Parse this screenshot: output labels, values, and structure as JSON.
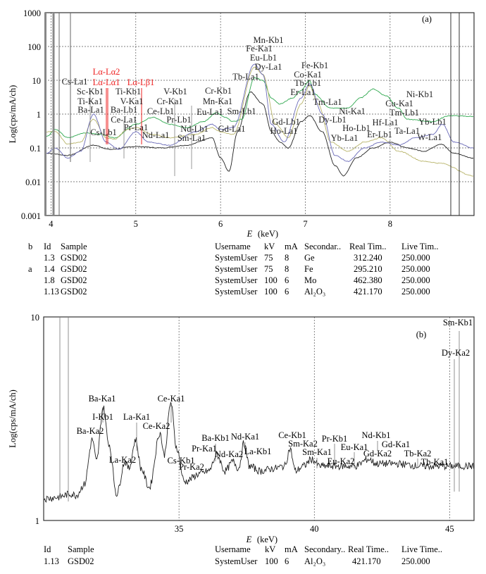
{
  "chart_data": [
    {
      "type": "line",
      "panel_label": "(a)",
      "xlabel_italic": "E",
      "xlabel_rest": "(keV)",
      "ylabel": "Log(cps/mA/ch)",
      "yscale": "log",
      "xlim": [
        3.93,
        8.99
      ],
      "ylim": [
        0.001,
        1000
      ],
      "grid": true,
      "xticks": [
        "4",
        "5",
        "6",
        "7",
        "8"
      ],
      "yticks": [
        "1000",
        "100",
        "10",
        "1",
        "0.1",
        "0.01",
        "0.001"
      ],
      "colors": {
        "black": "#222222",
        "green": "#2fa84f",
        "yellow": "#b8b46a",
        "blue": "#6a6ab8",
        "red": "#ee2222"
      },
      "series": [
        {
          "name": "1.13",
          "color": "black",
          "points": [
            [
              3.95,
              0.07
            ],
            [
              4.2,
              0.06
            ],
            [
              4.5,
              0.12
            ],
            [
              4.7,
              0.09
            ],
            [
              5.0,
              0.11
            ],
            [
              5.3,
              0.1
            ],
            [
              5.6,
              0.12
            ],
            [
              5.9,
              0.2
            ],
            [
              6.0,
              0.05
            ],
            [
              6.1,
              0.02
            ],
            [
              6.2,
              0.3
            ],
            [
              6.35,
              4.5
            ],
            [
              6.5,
              2
            ],
            [
              6.6,
              0.3
            ],
            [
              6.7,
              0.15
            ],
            [
              6.8,
              0.1
            ],
            [
              6.95,
              0.6
            ],
            [
              7.05,
              0.9
            ],
            [
              7.2,
              0.3
            ],
            [
              7.35,
              0.03
            ],
            [
              7.45,
              0.015
            ],
            [
              7.6,
              0.05
            ],
            [
              7.8,
              0.1
            ],
            [
              8.0,
              0.15
            ],
            [
              8.2,
              0.1
            ],
            [
              8.4,
              0.08
            ],
            [
              8.6,
              0.13
            ],
            [
              8.75,
              0.07
            ],
            [
              8.98,
              0.05
            ]
          ]
        },
        {
          "name": "1.8",
          "color": "green",
          "points": [
            [
              3.95,
              0.22
            ],
            [
              4.05,
              0.35
            ],
            [
              4.2,
              0.2
            ],
            [
              4.4,
              0.28
            ],
            [
              4.6,
              0.25
            ],
            [
              4.75,
              0.2
            ],
            [
              5.0,
              0.5
            ],
            [
              5.2,
              0.8
            ],
            [
              5.4,
              0.5
            ],
            [
              5.6,
              0.4
            ],
            [
              5.8,
              0.6
            ],
            [
              5.95,
              1.1
            ],
            [
              6.05,
              0.8
            ],
            [
              6.15,
              0.6
            ],
            [
              6.25,
              0.7
            ],
            [
              6.4,
              12
            ],
            [
              6.5,
              10
            ],
            [
              6.6,
              3
            ],
            [
              6.7,
              2
            ],
            [
              6.85,
              3
            ],
            [
              6.95,
              5
            ],
            [
              7.05,
              10
            ],
            [
              7.1,
              4
            ],
            [
              7.3,
              1.5
            ],
            [
              7.5,
              1.5
            ],
            [
              7.65,
              3
            ],
            [
              7.8,
              5.5
            ],
            [
              7.95,
              3.5
            ],
            [
              8.1,
              1.5
            ],
            [
              8.2,
              0.7
            ],
            [
              8.5,
              0.6
            ],
            [
              8.7,
              0.9
            ],
            [
              8.98,
              0.85
            ]
          ]
        },
        {
          "name": "1.4",
          "color": "yellow",
          "points": [
            [
              3.95,
              0.3
            ],
            [
              4.05,
              0.3
            ],
            [
              4.2,
              0.13
            ],
            [
              4.35,
              0.15
            ],
            [
              4.5,
              0.7
            ],
            [
              4.65,
              0.2
            ],
            [
              4.75,
              0.18
            ],
            [
              4.9,
              0.35
            ],
            [
              5.0,
              0.4
            ],
            [
              5.2,
              0.25
            ],
            [
              5.4,
              0.2
            ],
            [
              5.7,
              0.25
            ],
            [
              5.9,
              0.4
            ],
            [
              6.0,
              0.3
            ],
            [
              6.15,
              0.25
            ],
            [
              6.4,
              25
            ],
            [
              6.5,
              15
            ],
            [
              6.65,
              0.5
            ],
            [
              6.8,
              0.2
            ],
            [
              6.95,
              2
            ],
            [
              7.05,
              7
            ],
            [
              7.15,
              2
            ],
            [
              7.3,
              0.15
            ],
            [
              7.5,
              0.08
            ],
            [
              7.7,
              0.15
            ],
            [
              7.9,
              0.2
            ],
            [
              8.1,
              0.08
            ],
            [
              8.4,
              0.04
            ],
            [
              8.6,
              0.035
            ],
            [
              8.98,
              0.015
            ]
          ]
        },
        {
          "name": "1.3",
          "color": "blue",
          "points": [
            [
              3.95,
              0.07
            ],
            [
              4.05,
              0.1
            ],
            [
              4.2,
              0.05
            ],
            [
              4.35,
              0.08
            ],
            [
              4.5,
              1.0
            ],
            [
              4.65,
              0.15
            ],
            [
              4.8,
              0.09
            ],
            [
              5.0,
              0.3
            ],
            [
              5.15,
              0.15
            ],
            [
              5.4,
              0.12
            ],
            [
              5.7,
              0.3
            ],
            [
              5.9,
              0.5
            ],
            [
              6.0,
              0.35
            ],
            [
              6.15,
              0.4
            ],
            [
              6.4,
              30
            ],
            [
              6.5,
              15
            ],
            [
              6.6,
              0.5
            ],
            [
              6.75,
              0.15
            ],
            [
              6.95,
              3
            ],
            [
              7.05,
              8
            ],
            [
              7.2,
              1
            ],
            [
              7.35,
              0.06
            ],
            [
              7.5,
              0.04
            ],
            [
              7.7,
              0.1
            ],
            [
              7.9,
              0.15
            ],
            [
              8.1,
              0.12
            ],
            [
              8.3,
              0.2
            ],
            [
              8.5,
              0.25
            ],
            [
              8.62,
              0.5
            ],
            [
              8.75,
              0.15
            ],
            [
              8.98,
              0.1
            ]
          ]
        }
      ],
      "annotations": [
        "Cs-La1",
        "Lα-Lα2",
        "Lα-Lα1",
        "Lα-Lβ1",
        "Sc-Kb1",
        "Ti-Kb1",
        "V-Kb1",
        "Cr-Kb1",
        "Ti-Ka1",
        "V-Ka1",
        "Cr-Ka1",
        "Mn-Ka1",
        "Ba-La1",
        "Ba-Lb1",
        "Ce-Lb1",
        "Eu-La1",
        "Sm-Lb1",
        "Ce-La1",
        "Pr-Lb1",
        "Cs-Lb1",
        "Pr-La1",
        "Nd-Lb1",
        "Gd-La1",
        "Nd-La1",
        "Sm-La1",
        "Mn-Kb1",
        "Fe-Ka1",
        "Eu-Lb1",
        "Dy-La1",
        "Tb-La1",
        "Fe-Kb1",
        "Co-Ka1",
        "Tb-Lb1",
        "Er-La1",
        "Tm-La1",
        "Ni-Ka1",
        "Dy-Lb1",
        "Ho-Lb1",
        "Yb-La1",
        "Gd-Lb1",
        "Ho-La1",
        "Ni-Kb1",
        "Cu-Ka1",
        "Tm-Lb1",
        "Hf-La1",
        "Er-Lb1",
        "Ta-La1",
        "Yb-Lb1",
        "W-La1"
      ],
      "legend_table": {
        "headers": [
          "Id",
          "Sample",
          "Username",
          "kV",
          "mA",
          "Secondar..",
          "Real Tim..",
          "Live Tim.."
        ],
        "markers": [
          "b",
          "a"
        ],
        "rows": [
          [
            "1.3",
            "GSD02",
            "SystemUser",
            "75",
            "8",
            "Ge",
            "312.240",
            "250.000"
          ],
          [
            "1.4",
            "GSD02",
            "SystemUser",
            "75",
            "8",
            "Fe",
            "295.210",
            "250.000"
          ],
          [
            "1.8",
            "GSD02",
            "SystemUser",
            "100",
            "6",
            "Mo",
            "462.380",
            "250.000"
          ],
          [
            "1.13",
            "GSD02",
            "SystemUser",
            "100",
            "6",
            "Al₂O₃",
            "421.170",
            "250.000"
          ]
        ]
      }
    },
    {
      "type": "line",
      "panel_label": "(b)",
      "xlabel_italic": "E",
      "xlabel_rest": "(keV)",
      "ylabel": "Log(cps/mA/ch)",
      "yscale": "log",
      "xlim": [
        30.0,
        45.9
      ],
      "ylim": [
        1,
        10
      ],
      "grid": true,
      "xticks": [
        "35",
        "40",
        "45"
      ],
      "yticks": [
        "10",
        "1"
      ],
      "series": [
        {
          "name": "1.13",
          "color": "black",
          "points": [
            [
              30.0,
              1.28
            ],
            [
              30.5,
              1.3
            ],
            [
              31.0,
              1.35
            ],
            [
              31.2,
              1.33
            ],
            [
              31.5,
              1.5
            ],
            [
              31.8,
              2.5
            ],
            [
              31.95,
              1.95
            ],
            [
              32.2,
              3.6
            ],
            [
              32.4,
              2.4
            ],
            [
              32.7,
              1.35
            ],
            [
              33.0,
              1.95
            ],
            [
              33.15,
              1.8
            ],
            [
              33.4,
              2.5
            ],
            [
              33.6,
              1.8
            ],
            [
              33.9,
              1.45
            ],
            [
              34.3,
              2.7
            ],
            [
              34.45,
              2.1
            ],
            [
              34.7,
              3.8
            ],
            [
              34.9,
              2.3
            ],
            [
              35.2,
              1.55
            ],
            [
              35.8,
              1.7
            ],
            [
              36.1,
              1.75
            ],
            [
              36.4,
              2.1
            ],
            [
              36.7,
              1.75
            ],
            [
              37.0,
              1.95
            ],
            [
              37.2,
              1.8
            ],
            [
              37.4,
              2.4
            ],
            [
              37.6,
              1.85
            ],
            [
              38.0,
              1.75
            ],
            [
              38.5,
              1.8
            ],
            [
              38.9,
              1.85
            ],
            [
              39.1,
              2.25
            ],
            [
              39.3,
              1.75
            ],
            [
              39.6,
              1.85
            ],
            [
              39.9,
              2.0
            ],
            [
              40.2,
              1.85
            ],
            [
              41.0,
              1.85
            ],
            [
              41.5,
              1.85
            ],
            [
              42.0,
              2.0
            ],
            [
              42.3,
              1.9
            ],
            [
              43.0,
              1.9
            ],
            [
              44.0,
              1.85
            ],
            [
              45.9,
              1.85
            ]
          ]
        }
      ],
      "annotations": [
        "Ba-Ka1",
        "I-Kb1",
        "Ba-Ka2",
        "La-Ka1",
        "Ce-Ka2",
        "Ce-Ka1",
        "La-Ka2",
        "Cs-Kb1",
        "Pr-Ka2",
        "Ba-Kb1",
        "Pr-Ka1",
        "Nd-Ka1",
        "Nd-Ka2",
        "La-Kb1",
        "Ce-Kb1",
        "Sm-Ka2",
        "Sm-Ka1",
        "Pr-Kb1",
        "Eu-Ka1",
        "Eu-Ka2",
        "Nd-Kb1",
        "Gd-Ka1",
        "Gd-Ka2",
        "Tb-Ka2",
        "Tb-Ka1",
        "Sm-Kb1",
        "Dy-Ka2"
      ],
      "legend_table": {
        "headers": [
          "Id",
          "Sample",
          "Username",
          "kV",
          "mA",
          "Secondary..",
          "Real Time..",
          "Live Time.."
        ],
        "rows": [
          [
            "1.13",
            "GSD02",
            "SystemUser",
            "100",
            "6",
            "Al₂O₃",
            "421.170",
            "250.000"
          ]
        ]
      }
    }
  ]
}
